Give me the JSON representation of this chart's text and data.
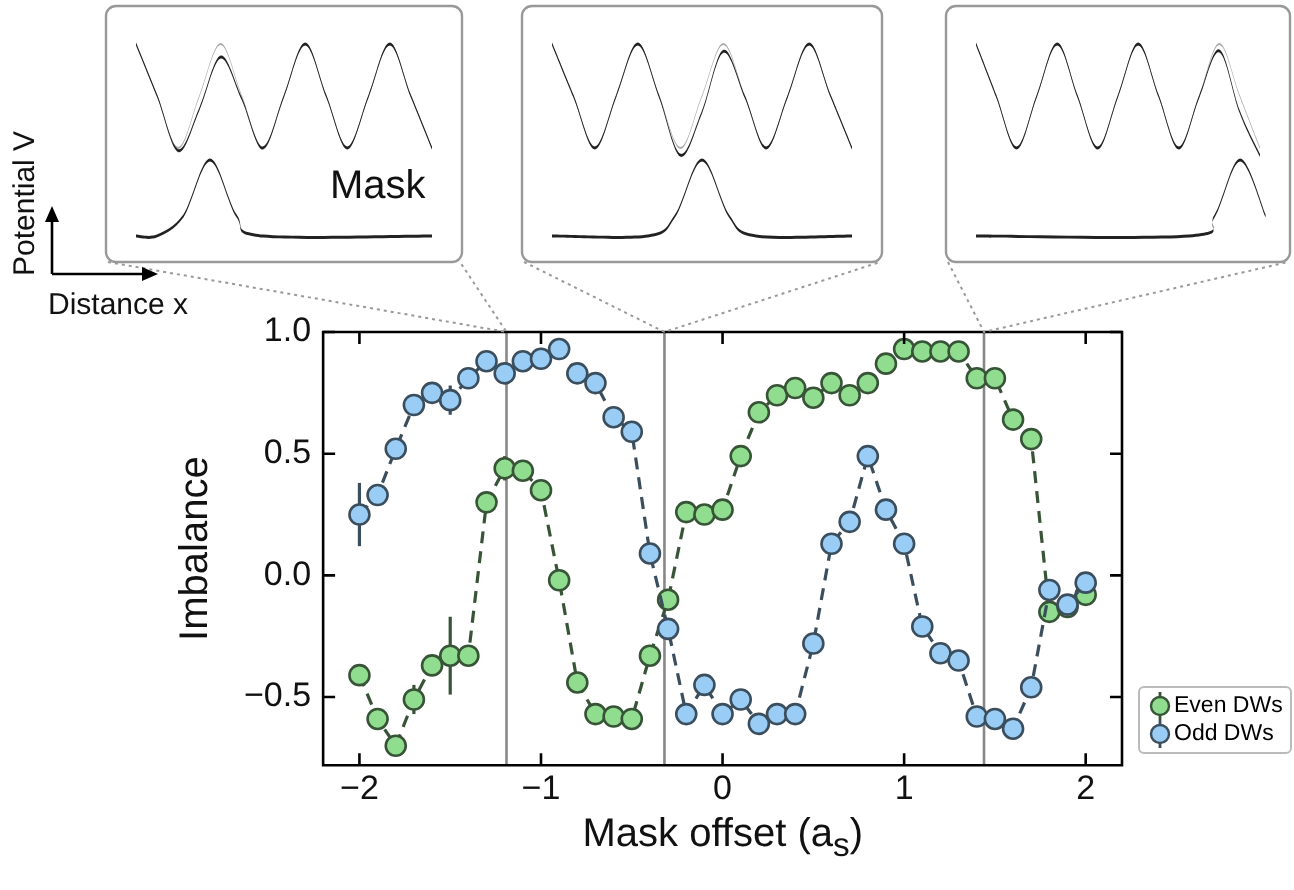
{
  "chart_data": {
    "type": "line",
    "xlabel": "Mask offset (a$_{s}$)",
    "ylabel": "Imbalance",
    "x": [
      -2.0,
      -1.9,
      -1.8,
      -1.7,
      -1.6,
      -1.5,
      -1.4,
      -1.3,
      -1.2,
      -1.1,
      -1.0,
      -0.9,
      -0.8,
      -0.7,
      -0.6,
      -0.5,
      -0.4,
      -0.3,
      -0.2,
      -0.1,
      0.0,
      0.1,
      0.2,
      0.3,
      0.4,
      0.5,
      0.6,
      0.7,
      0.8,
      0.9,
      1.0,
      1.1,
      1.2,
      1.3,
      1.4,
      1.5,
      1.6,
      1.7,
      1.8,
      1.9,
      2.0
    ],
    "series": [
      {
        "name": "Even DWs",
        "color": "#90dd90",
        "values": [
          -0.41,
          -0.59,
          -0.7,
          -0.51,
          -0.37,
          -0.33,
          -0.33,
          0.3,
          0.44,
          0.43,
          0.35,
          -0.02,
          -0.44,
          -0.57,
          -0.58,
          -0.59,
          -0.33,
          -0.1,
          0.26,
          0.25,
          0.27,
          0.49,
          0.67,
          0.74,
          0.77,
          0.73,
          0.79,
          0.74,
          0.79,
          0.87,
          0.93,
          0.92,
          0.92,
          0.92,
          0.81,
          0.81,
          0.64,
          0.56,
          -0.15,
          -0.13,
          -0.08
        ],
        "errors": [
          null,
          null,
          null,
          0.06,
          null,
          0.16,
          null,
          null,
          0.05,
          null,
          null,
          null,
          null,
          null,
          null,
          null,
          null,
          null,
          null,
          null,
          null,
          null,
          null,
          null,
          null,
          null,
          null,
          null,
          null,
          null,
          null,
          null,
          null,
          null,
          null,
          null,
          null,
          null,
          null,
          null,
          null
        ]
      },
      {
        "name": "Odd DWs",
        "color": "#9acdf5",
        "values": [
          0.25,
          0.33,
          0.52,
          0.7,
          0.75,
          0.72,
          0.81,
          0.88,
          0.83,
          0.88,
          0.89,
          0.93,
          0.83,
          0.79,
          0.65,
          0.59,
          0.09,
          -0.22,
          -0.57,
          -0.45,
          -0.57,
          -0.51,
          -0.61,
          -0.57,
          -0.57,
          -0.28,
          0.13,
          0.22,
          0.49,
          0.27,
          0.13,
          -0.21,
          -0.32,
          -0.35,
          -0.58,
          -0.59,
          -0.63,
          -0.46,
          -0.06,
          -0.12,
          -0.03
        ],
        "errors": [
          0.13,
          null,
          null,
          null,
          null,
          0.06,
          null,
          null,
          null,
          null,
          null,
          null,
          null,
          null,
          null,
          null,
          null,
          null,
          null,
          null,
          null,
          null,
          null,
          null,
          null,
          null,
          null,
          null,
          null,
          null,
          null,
          null,
          null,
          null,
          null,
          null,
          null,
          null,
          null,
          null,
          null
        ]
      }
    ],
    "xlim": [
      -2.2,
      2.2
    ],
    "xticks": [
      -2,
      -1,
      0,
      1,
      2
    ],
    "ylim": [
      -0.78,
      1.0
    ],
    "yticks": [
      {
        "value": 1.0,
        "label": "1.0"
      },
      0.5,
      {
        "value": 0,
        "label": "0.0"
      },
      -0.5
    ],
    "ref_lines": [
      {
        "axis": "x",
        "value": -1.19,
        "color": "#888888"
      },
      {
        "axis": "x",
        "value": -0.32,
        "color": "#888888"
      },
      {
        "axis": "x",
        "value": 1.44,
        "color": "#888888"
      }
    ],
    "marker": "circle",
    "line_style": "dashed",
    "grid": false,
    "legend": "right",
    "annotations": [
      "Mask",
      "Potential V",
      "Distance x"
    ]
  }
}
